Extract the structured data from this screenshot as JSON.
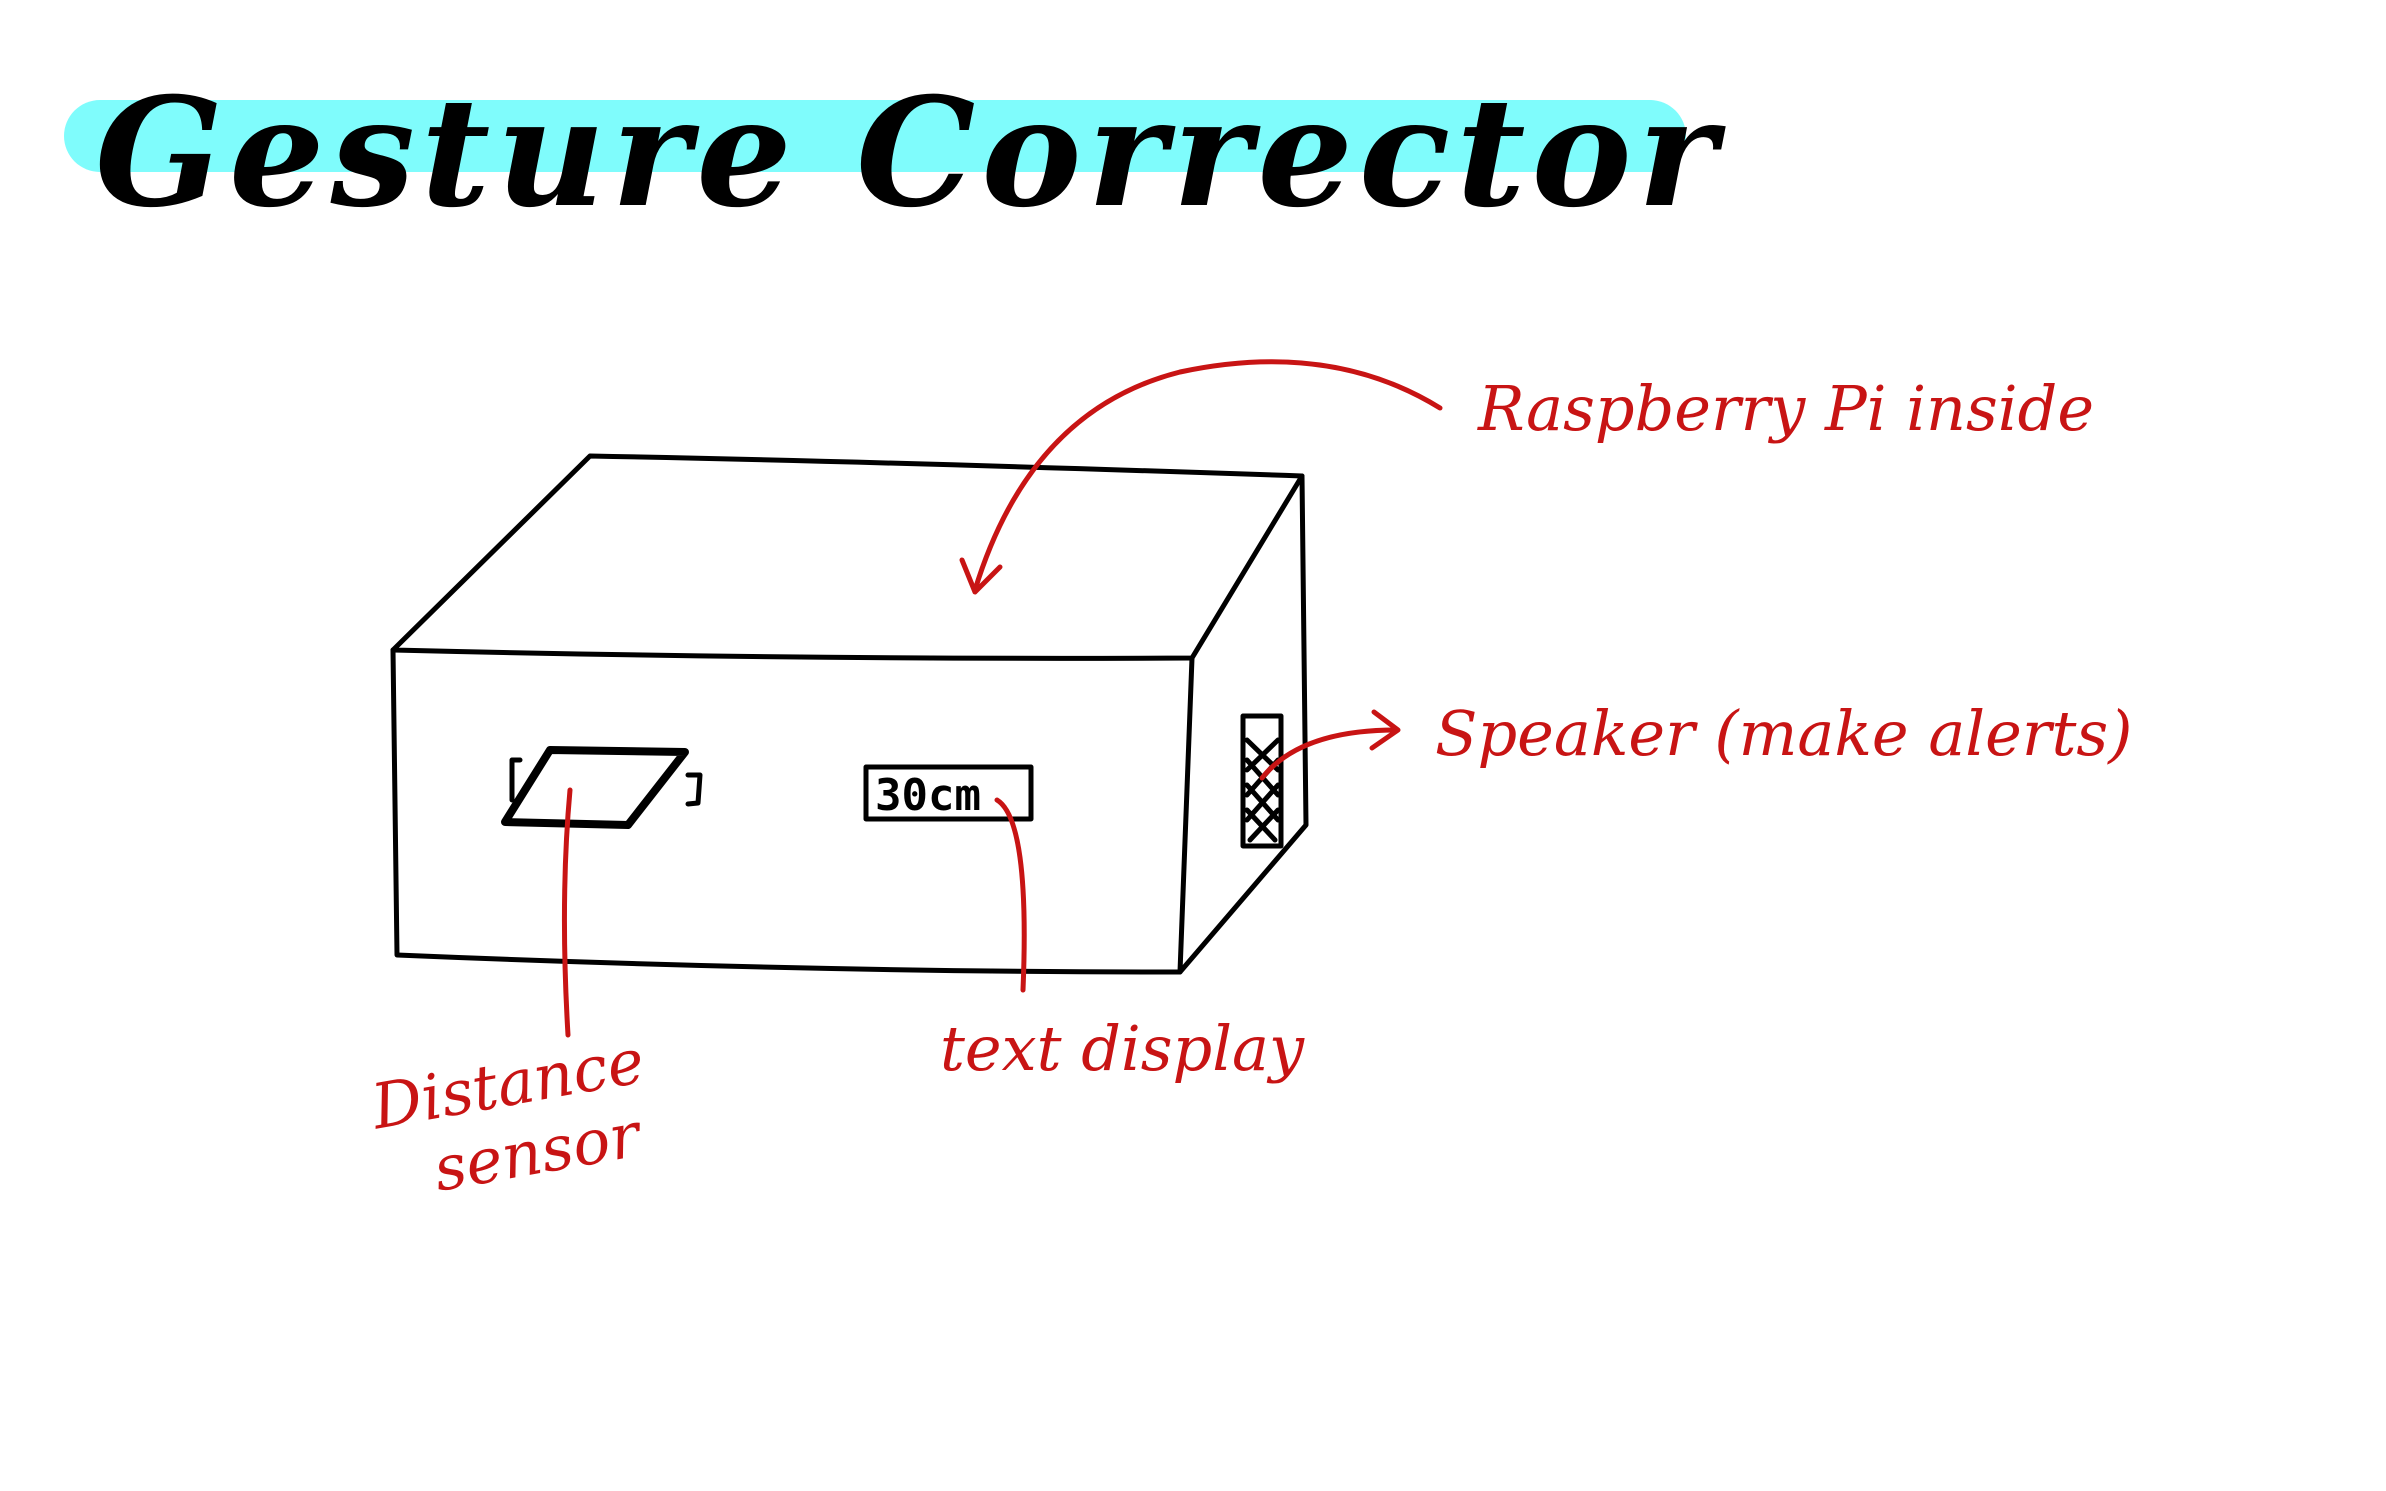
{
  "title": "Gesture Corrector",
  "colors": {
    "highlight": "#7ffcfc",
    "ink": "#000000",
    "annotation": "#c81414"
  },
  "box": {
    "display_value": "30cm"
  },
  "annotations": {
    "raspberry": "Raspberry Pi inside",
    "speaker": "Speaker (make alerts)",
    "sensor_line1": "Distance",
    "sensor_line2": "sensor",
    "display": "text display"
  }
}
